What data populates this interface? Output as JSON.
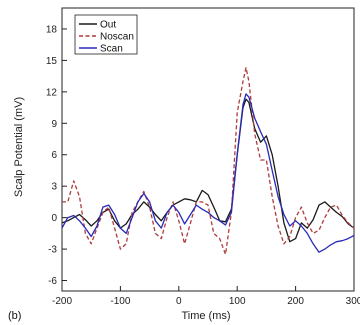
{
  "chart_data": {
    "type": "line",
    "panel_label": "(b)",
    "xlabel": "Time (ms)",
    "ylabel": "Scalp Potential (mV)",
    "xlim": [
      -200,
      300
    ],
    "ylim": [
      -7,
      20
    ],
    "xticks": [
      -200,
      -100,
      0,
      100,
      200,
      300
    ],
    "yticks": [
      -6,
      -3,
      0,
      3,
      6,
      9,
      12,
      15,
      18
    ],
    "grid": false,
    "legend_position": "top-left",
    "series": [
      {
        "name": "Out",
        "color": "#1a1a1a",
        "dash": "solid",
        "x": [
          -200,
          -190,
          -180,
          -170,
          -160,
          -150,
          -140,
          -130,
          -120,
          -110,
          -100,
          -90,
          -80,
          -70,
          -60,
          -50,
          -40,
          -30,
          -20,
          -10,
          0,
          10,
          20,
          30,
          40,
          50,
          60,
          70,
          80,
          90,
          100,
          110,
          115,
          120,
          130,
          140,
          150,
          160,
          170,
          180,
          190,
          200,
          210,
          220,
          230,
          240,
          250,
          260,
          270,
          280,
          290,
          300
        ],
        "y": [
          -0.5,
          -0.3,
          0,
          0.3,
          -0.2,
          -0.8,
          -0.3,
          0.5,
          0.8,
          -0.3,
          -1,
          -0.6,
          0.3,
          0.8,
          1.5,
          1,
          0.3,
          -0.3,
          0.5,
          1.2,
          1.5,
          1.8,
          1.7,
          1.5,
          2.6,
          2.2,
          1,
          -0.3,
          -0.4,
          0.8,
          6,
          10.5,
          11.3,
          11,
          8.5,
          7.2,
          7.8,
          6,
          3,
          -0.5,
          -2.3,
          -2,
          -0.5,
          -1,
          -0.2,
          1.2,
          1.5,
          1,
          0.5,
          0.1,
          -0.6,
          -1
        ]
      },
      {
        "name": "Noscan",
        "color": "#b03a3a",
        "dash": "dashed",
        "x": [
          -200,
          -190,
          -180,
          -170,
          -160,
          -150,
          -140,
          -130,
          -120,
          -110,
          -100,
          -90,
          -80,
          -70,
          -60,
          -50,
          -40,
          -30,
          -20,
          -10,
          0,
          10,
          20,
          30,
          40,
          50,
          60,
          70,
          80,
          90,
          100,
          110,
          115,
          120,
          130,
          140,
          150,
          160,
          170,
          180,
          190,
          200,
          210,
          220,
          230,
          240,
          250,
          260,
          270,
          280,
          290,
          300
        ],
        "y": [
          1.5,
          1.5,
          3.5,
          2,
          -1.5,
          -2.5,
          -1,
          0.5,
          1,
          -1,
          -3,
          -2.5,
          0.5,
          1.5,
          2.5,
          1,
          -1.5,
          -2,
          0,
          1.5,
          -0.3,
          -2.5,
          -0.5,
          1.5,
          1.5,
          1.2,
          -1.5,
          -2,
          -3.5,
          0.5,
          10,
          13,
          14.3,
          13,
          8,
          5.5,
          5.5,
          2,
          -0.8,
          -2.5,
          -1.8,
          0,
          1,
          -0.5,
          -1.5,
          -1.2,
          0,
          1,
          1.2,
          0.2,
          -0.5,
          -1
        ]
      },
      {
        "name": "Scan",
        "color": "#2a2ab8",
        "dash": "solid",
        "x": [
          -200,
          -190,
          -180,
          -170,
          -160,
          -150,
          -140,
          -130,
          -120,
          -110,
          -100,
          -90,
          -80,
          -70,
          -60,
          -50,
          -40,
          -30,
          -20,
          -10,
          0,
          10,
          20,
          30,
          40,
          50,
          60,
          70,
          80,
          90,
          100,
          110,
          115,
          120,
          130,
          140,
          150,
          160,
          170,
          180,
          190,
          200,
          210,
          220,
          230,
          240,
          250,
          260,
          270,
          280,
          290,
          300
        ],
        "y": [
          -1,
          0,
          0.2,
          -0.3,
          -1,
          -1.8,
          -0.8,
          1,
          1.2,
          0.3,
          -1,
          -1.5,
          0,
          1.5,
          2.3,
          1.5,
          -0.3,
          -1,
          0.5,
          1.2,
          0.5,
          -0.6,
          0.3,
          1.2,
          0.8,
          0.5,
          0,
          -0.3,
          -0.7,
          0.5,
          6,
          10.8,
          11.8,
          11.5,
          9.5,
          8.2,
          7,
          4.5,
          2,
          0.3,
          -0.8,
          -0.3,
          -0.8,
          -1.5,
          -2.5,
          -3.3,
          -3,
          -2.6,
          -2.3,
          -2.2,
          -2,
          -1.7
        ]
      }
    ]
  }
}
